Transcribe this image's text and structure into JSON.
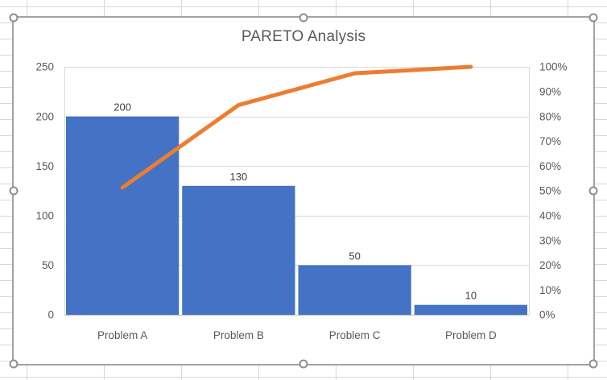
{
  "chart_data": {
    "type": "combo-bar-line",
    "title": "PARETO Analysis",
    "categories": [
      "Problem A",
      "Problem B",
      "Problem C",
      "Problem D"
    ],
    "series": [
      {
        "role": "bars",
        "type": "bar",
        "values": [
          200,
          130,
          50,
          10
        ],
        "data_labels": [
          "200",
          "130",
          "50",
          "10"
        ],
        "axis": "left"
      },
      {
        "role": "cumulative-line",
        "type": "line",
        "values_pct": [
          51.3,
          84.6,
          97.4,
          100
        ],
        "axis": "right"
      }
    ],
    "y_left": {
      "min": 0,
      "max": 250,
      "step": 50,
      "ticks": [
        "0",
        "50",
        "100",
        "150",
        "200",
        "250"
      ]
    },
    "y_right": {
      "min": 0,
      "max": 100,
      "step": 10,
      "ticks": [
        "0%",
        "10%",
        "20%",
        "30%",
        "40%",
        "50%",
        "60%",
        "70%",
        "80%",
        "90%",
        "100%"
      ]
    },
    "grid": true,
    "legend": "none"
  },
  "colors": {
    "bar": "#4472C4",
    "line": "#ED7D31",
    "axis_text": "#595959",
    "data_label_text": "#404040",
    "gridline": "#D9D9D9",
    "axis_line": "#BFBFBF",
    "chart_bg": "#FFFFFF"
  },
  "selection": {
    "handle_count": 8
  }
}
